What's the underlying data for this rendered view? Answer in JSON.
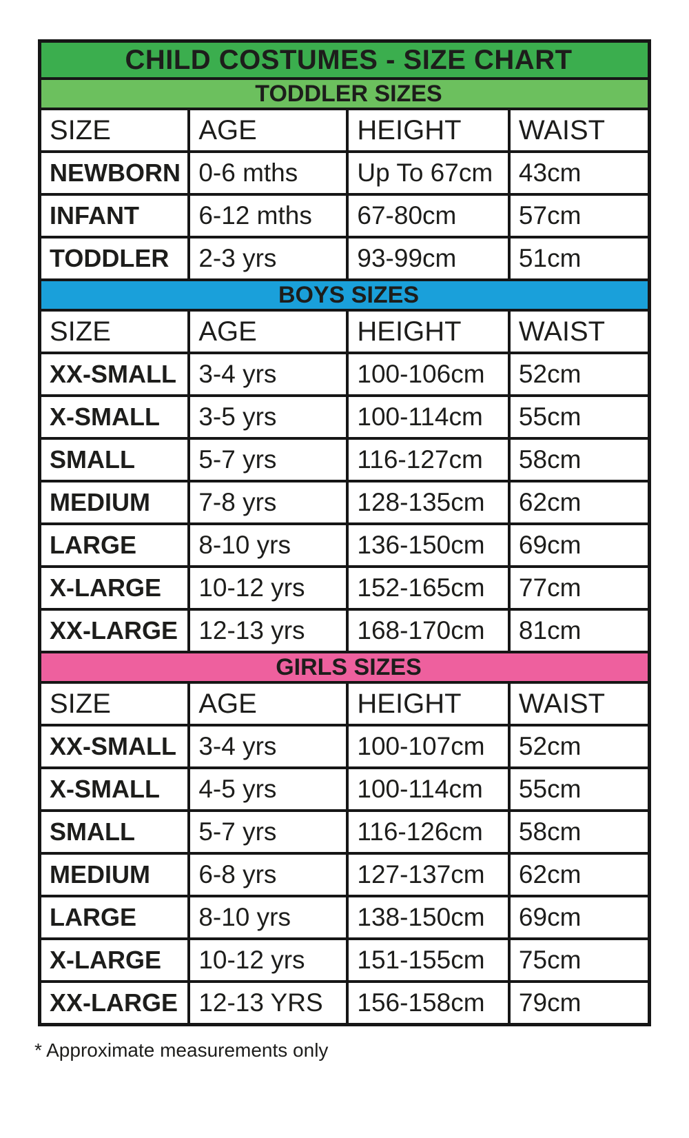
{
  "chart_data": {
    "type": "table",
    "title": "CHILD COSTUMES - SIZE CHART",
    "columns": [
      "SIZE",
      "AGE",
      "HEIGHT",
      "WAIST"
    ],
    "sections": [
      {
        "id": "toddler",
        "label": "TODDLER SIZES",
        "band_color": "#6cc05e",
        "rows": [
          [
            "NEWBORN",
            "0-6 mths",
            "Up To 67cm",
            "43cm"
          ],
          [
            "INFANT",
            "6-12 mths",
            "67-80cm",
            "57cm"
          ],
          [
            "TODDLER",
            "2-3 yrs",
            "93-99cm",
            "51cm"
          ]
        ]
      },
      {
        "id": "boys",
        "label": "BOYS SIZES",
        "band_color": "#1aa0da",
        "rows": [
          [
            "XX-SMALL",
            "3-4 yrs",
            "100-106cm",
            "52cm"
          ],
          [
            "X-SMALL",
            "3-5 yrs",
            "100-114cm",
            "55cm"
          ],
          [
            "SMALL",
            "5-7 yrs",
            "116-127cm",
            "58cm"
          ],
          [
            "MEDIUM",
            "7-8 yrs",
            "128-135cm",
            "62cm"
          ],
          [
            "LARGE",
            "8-10 yrs",
            "136-150cm",
            "69cm"
          ],
          [
            "X-LARGE",
            "10-12 yrs",
            "152-165cm",
            "77cm"
          ],
          [
            "XX-LARGE",
            "12-13 yrs",
            "168-170cm",
            "81cm"
          ]
        ]
      },
      {
        "id": "girls",
        "label": "GIRLS SIZES",
        "band_color": "#ee609e",
        "rows": [
          [
            "XX-SMALL",
            "3-4 yrs",
            "100-107cm",
            "52cm"
          ],
          [
            "X-SMALL",
            "4-5 yrs",
            "100-114cm",
            "55cm"
          ],
          [
            "SMALL",
            "5-7 yrs",
            "116-126cm",
            "58cm"
          ],
          [
            "MEDIUM",
            "6-8 yrs",
            "127-137cm",
            "62cm"
          ],
          [
            "LARGE",
            "8-10 yrs",
            "138-150cm",
            "69cm"
          ],
          [
            "X-LARGE",
            "10-12 yrs",
            "151-155cm",
            "75cm"
          ],
          [
            "XX-LARGE",
            "12-13 YRS",
            "156-158cm",
            "79cm"
          ]
        ]
      }
    ],
    "footnote": "* Approximate measurements only"
  },
  "colors": {
    "title_bg": "#3bae4e",
    "toddler_band": "#6cc05e",
    "boys_band": "#1aa0da",
    "girls_band": "#ee609e",
    "border": "#161616",
    "text": "#1d1d1b"
  }
}
